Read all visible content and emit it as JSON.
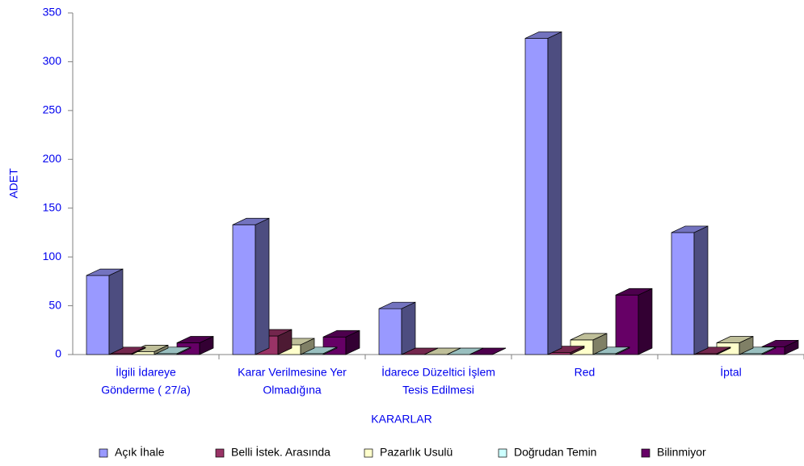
{
  "chart_data": {
    "type": "bar3d",
    "x_label": "KARARLAR",
    "y_label": "ADET",
    "categories": [
      [
        "İlgili İdareye",
        "Gönderme     ( 27/a)"
      ],
      [
        "Karar Verilmesine Yer",
        "Olmadığına"
      ],
      [
        "İdarece Düzeltici İşlem",
        "Tesis Edilmesi"
      ],
      [
        "Red"
      ],
      [
        "İptal"
      ]
    ],
    "series": [
      {
        "name": "Açık İhale",
        "color": "#9999ff",
        "values": [
          81,
          133,
          47,
          324,
          125
        ]
      },
      {
        "name": "Belli İstek. Arasında",
        "color": "#993366",
        "values": [
          1,
          19,
          0,
          2,
          1
        ]
      },
      {
        "name": "Pazarlık Usulü",
        "color": "#ffffcc",
        "values": [
          3,
          10,
          0,
          15,
          12
        ]
      },
      {
        "name": "Doğrudan Temin",
        "color": "#ccffff",
        "values": [
          1,
          1,
          0,
          1,
          1
        ]
      },
      {
        "name": "Bilinmiyor",
        "color": "#660066",
        "values": [
          12,
          18,
          0,
          61,
          8
        ]
      }
    ],
    "ylim": [
      0,
      350
    ],
    "yticks": [
      0,
      50,
      100,
      150,
      200,
      250,
      300,
      350
    ],
    "legend": "bottom"
  }
}
